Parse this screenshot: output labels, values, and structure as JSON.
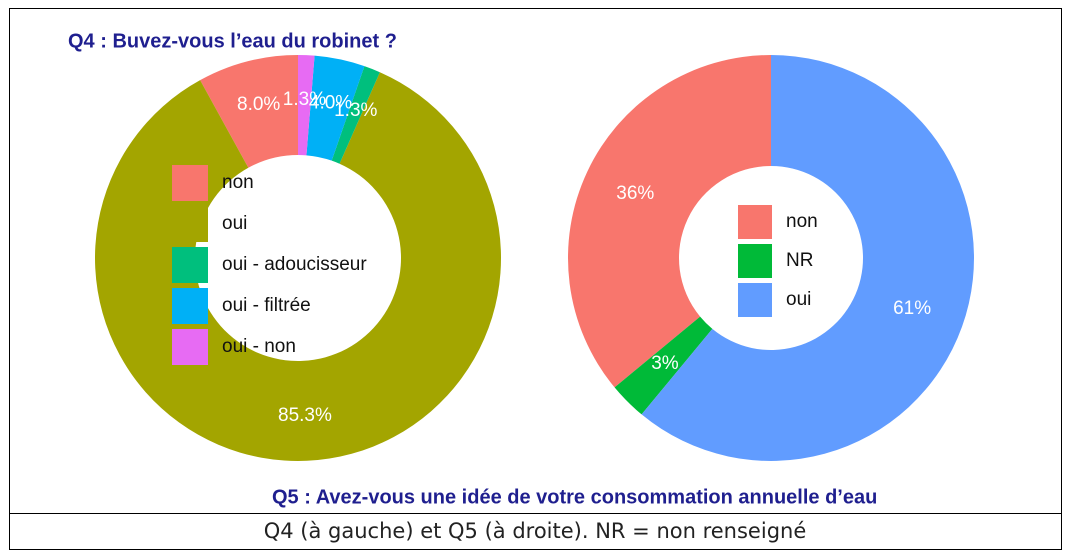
{
  "chart_data": [
    {
      "type": "donut",
      "title": "Q4 : Buvez-vous l’eau du robinet ?",
      "categories": [
        "non",
        "oui",
        "oui - adoucisseur",
        "oui - filtrée",
        "oui - non"
      ],
      "values": [
        8.0,
        85.3,
        1.3,
        4.0,
        1.3
      ],
      "value_labels": [
        "8.0%",
        "85.3%",
        "1.3%",
        "4.0%",
        "1.3%"
      ],
      "colors": [
        "#F8766D",
        "#A3A500",
        "#00BF7D",
        "#00B0F6",
        "#E76BF3"
      ]
    },
    {
      "type": "donut",
      "title": "Q5 : Avez-vous une idée de votre consommation annuelle d’eau",
      "categories": [
        "non",
        "NR",
        "oui"
      ],
      "values": [
        36,
        3,
        61
      ],
      "value_labels": [
        "36%",
        "3%",
        "61%"
      ],
      "colors": [
        "#F8766D",
        "#00BA38",
        "#619CFF"
      ]
    }
  ],
  "caption": "Q4 (à gauche) et Q5 (à droite). NR = non renseigné"
}
